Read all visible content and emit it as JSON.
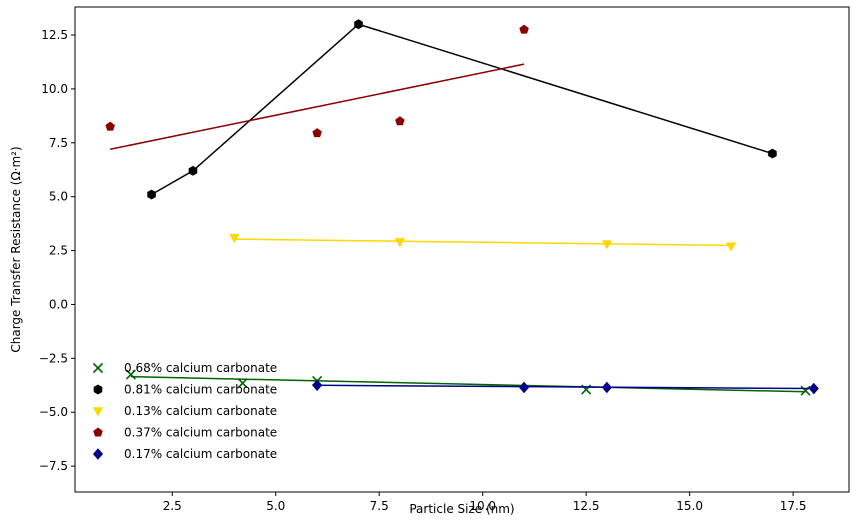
{
  "chart_data": {
    "type": "scatter",
    "title": "",
    "xlabel": "Particle Size (nm)",
    "ylabel": "Charge Transfer Resistance (Ω·m²)",
    "xlim": [
      0.15,
      18.85
    ],
    "ylim": [
      -8.7,
      13.8
    ],
    "xticks": [
      2.5,
      5.0,
      7.5,
      10.0,
      12.5,
      15.0,
      17.5
    ],
    "xtick_labels": [
      "2.5",
      "5.0",
      "7.5",
      "10.0",
      "12.5",
      "15.0",
      "17.5"
    ],
    "yticks": [
      -7.5,
      -5.0,
      -2.5,
      0.0,
      2.5,
      5.0,
      7.5,
      10.0,
      12.5
    ],
    "ytick_labels": [
      "−7.5",
      "−5.0",
      "−2.5",
      "0.0",
      "2.5",
      "5.0",
      "7.5",
      "10.0",
      "12.5"
    ],
    "grid": false,
    "legend_position": "lower-left",
    "series": [
      {
        "name": "0.68% calcium carbonate",
        "color": "#006400",
        "marker": "x",
        "x": [
          1.5,
          4.2,
          6.0,
          12.5,
          17.8
        ],
        "y": [
          -3.25,
          -3.65,
          -3.55,
          -3.95,
          -4.0
        ],
        "line_kind": "fit",
        "line": {
          "x": [
            1.5,
            17.8
          ],
          "y": [
            -3.35,
            -4.05
          ]
        }
      },
      {
        "name": "0.81% calcium carbonate",
        "color": "#000000",
        "marker": "hexagon",
        "x": [
          2,
          3,
          7,
          17
        ],
        "y": [
          5.1,
          6.2,
          13.0,
          7.0
        ],
        "line_kind": "connect",
        "line": {
          "x": [
            2,
            3,
            7,
            17
          ],
          "y": [
            5.1,
            6.2,
            13.0,
            7.0
          ]
        }
      },
      {
        "name": "0.13% calcium carbonate",
        "color": "#FFD700",
        "marker": "triangle-down",
        "x": [
          4,
          8,
          13,
          16
        ],
        "y": [
          3.1,
          2.9,
          2.8,
          2.7
        ],
        "line_kind": "fit",
        "line": {
          "x": [
            4,
            16
          ],
          "y": [
            3.03,
            2.74
          ]
        }
      },
      {
        "name": "0.37% calcium carbonate",
        "color": "#8B0000",
        "marker": "pentagon",
        "x": [
          1,
          6,
          8,
          11
        ],
        "y": [
          8.25,
          7.95,
          8.5,
          12.75
        ],
        "line_kind": "fit",
        "line": {
          "x": [
            1,
            11
          ],
          "y": [
            7.2,
            11.15
          ]
        }
      },
      {
        "name": "0.17% calcium carbonate",
        "color": "#00008B",
        "marker": "diamond",
        "x": [
          6,
          11,
          13,
          18
        ],
        "y": [
          -3.75,
          -3.85,
          -3.85,
          -3.9
        ],
        "line_kind": "fit",
        "line": {
          "x": [
            6,
            18
          ],
          "y": [
            -3.75,
            -3.9
          ]
        }
      }
    ]
  }
}
